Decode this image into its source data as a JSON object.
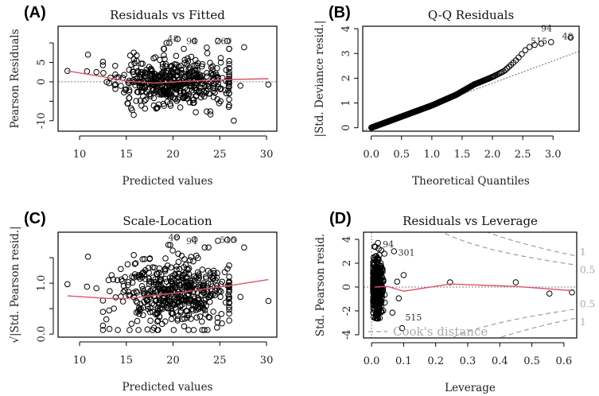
{
  "colors": {
    "points": "#000000",
    "smooth": "#DF536B",
    "reference": "#808080",
    "cook": "#9E9E9E"
  },
  "chart_data": [
    {
      "panel_label": "(A)",
      "type": "scatter",
      "title": "Residuals vs Fitted",
      "xlabel": "Predicted values",
      "ylabel": "Pearson Residuals",
      "xlim": [
        7.7,
        31.1
      ],
      "ylim": [
        -12.7,
        14.3
      ],
      "xticks": [
        10,
        15,
        20,
        25,
        30
      ],
      "xtick_labels": [
        "10",
        "15",
        "20",
        "25",
        "30"
      ],
      "yticks": [
        -10,
        -5,
        0,
        5,
        10
      ],
      "ytick_labels": [
        "-10",
        "",
        "0",
        "5",
        ""
      ],
      "hline": 0,
      "cloud": {
        "n": 480,
        "x_mean": 20,
        "x_sd": 3.0,
        "x_range": [
          12.5,
          26
        ],
        "y_mean": 0,
        "y_sd": 3.0,
        "y_range": [
          -8.5,
          8.5
        ],
        "seed": 11
      },
      "points": [
        [
          8.7,
          2.8
        ],
        [
          10.8,
          2.7
        ],
        [
          10.9,
          7.0
        ],
        [
          11.8,
          2.5
        ],
        [
          15.8,
          7.5
        ],
        [
          19.0,
          8.5
        ],
        [
          19.3,
          10.0
        ],
        [
          19.6,
          10.0
        ],
        [
          20.5,
          11.0
        ],
        [
          22.3,
          10.5
        ],
        [
          23.6,
          8.8
        ],
        [
          24.8,
          10.5
        ],
        [
          25.8,
          10.5
        ],
        [
          27.6,
          8.9
        ],
        [
          26.5,
          -10.0
        ],
        [
          27.2,
          -1.0
        ],
        [
          30.2,
          -0.7
        ],
        [
          17.0,
          -6.9
        ],
        [
          18.2,
          -6.9
        ],
        [
          24.0,
          -8.4
        ],
        [
          25.9,
          -2.2
        ]
      ],
      "labels": [
        {
          "text": "48",
          "x": 19.4,
          "y": 11.1
        },
        {
          "text": "94",
          "x": 21.4,
          "y": 10.5
        },
        {
          "text": "260",
          "x": 24.5,
          "y": 10.5
        }
      ],
      "smooth": [
        [
          8.7,
          2.8
        ],
        [
          12,
          1.5
        ],
        [
          15,
          0.2
        ],
        [
          18,
          -0.3
        ],
        [
          21,
          0.1
        ],
        [
          24,
          0.4
        ],
        [
          26,
          0.6
        ],
        [
          30.2,
          0.8
        ]
      ]
    },
    {
      "panel_label": "(B)",
      "type": "scatter",
      "title": "Q-Q Residuals",
      "xlabel": "Theoretical Quantiles",
      "ylabel": "|Std. Deviance resid.|",
      "xlim": [
        -0.14,
        3.43
      ],
      "ylim": [
        -0.14,
        4.1
      ],
      "xticks": [
        0,
        0.5,
        1,
        1.5,
        2,
        2.5,
        3
      ],
      "xtick_labels": [
        "0.0",
        "0.5",
        "1.0",
        "1.5",
        "2.0",
        "2.5",
        "3.0"
      ],
      "yticks": [
        0,
        1,
        2,
        3,
        4
      ],
      "ytick_labels": [
        "0",
        "1",
        "2",
        "3",
        "4"
      ],
      "n": 500,
      "qq_curve": [
        [
          0,
          0
        ],
        [
          0.5,
          0.45
        ],
        [
          1.0,
          0.9
        ],
        [
          1.4,
          1.33
        ],
        [
          1.7,
          1.75
        ],
        [
          2.0,
          2.05
        ],
        [
          2.2,
          2.3
        ],
        [
          2.4,
          2.75
        ],
        [
          2.55,
          3.15
        ],
        [
          2.65,
          3.33
        ],
        [
          2.75,
          3.37
        ],
        [
          2.85,
          3.42
        ],
        [
          3.0,
          3.47
        ],
        [
          3.3,
          3.65
        ]
      ],
      "reference_line": {
        "slope": 0.9,
        "intercept": 0
      },
      "labels": [
        {
          "text": "515",
          "x": 2.63,
          "y": 3.5
        },
        {
          "text": "94",
          "x": 2.8,
          "y": 3.5
        },
        {
          "text": "48",
          "x": 3.15,
          "y": 3.7
        }
      ]
    },
    {
      "panel_label": "(C)",
      "type": "scatter",
      "title": "Scale-Location",
      "xlabel": "Predicted values",
      "ylabel": "√|Std. Pearson resid.|",
      "xlim": [
        7.7,
        31.1
      ],
      "ylim": [
        -0.06,
        2.0
      ],
      "xticks": [
        10,
        15,
        20,
        25,
        30
      ],
      "xtick_labels": [
        "10",
        "15",
        "20",
        "25",
        "30"
      ],
      "yticks": [
        0,
        0.5,
        1.0,
        1.5
      ],
      "ytick_labels": [
        "0.0",
        "",
        "1.0",
        ""
      ],
      "cloud": {
        "n": 480,
        "x_mean": 20,
        "x_sd": 3.0,
        "x_range": [
          12.5,
          26
        ],
        "y_mean": 0.8,
        "y_sd": 0.33,
        "y_range": [
          0.08,
          1.7
        ],
        "seed": 23
      },
      "points": [
        [
          8.7,
          0.98
        ],
        [
          10.8,
          0.93
        ],
        [
          10.9,
          1.52
        ],
        [
          11.8,
          0.9
        ],
        [
          15.8,
          1.55
        ],
        [
          19.5,
          1.75
        ],
        [
          19.7,
          1.75
        ],
        [
          20.4,
          1.9
        ],
        [
          22.3,
          1.86
        ],
        [
          24.8,
          1.83
        ],
        [
          25.8,
          1.85
        ],
        [
          26.5,
          1.85
        ],
        [
          27.6,
          1.7
        ],
        [
          27.2,
          0.73
        ],
        [
          30.2,
          0.65
        ],
        [
          13.2,
          0.1
        ],
        [
          16.3,
          0.08
        ],
        [
          17.8,
          0.08
        ]
      ],
      "labels": [
        {
          "text": "48",
          "x": 19.5,
          "y": 1.9
        },
        {
          "text": "94",
          "x": 21.4,
          "y": 1.83
        },
        {
          "text": "515",
          "x": 25.0,
          "y": 1.85
        }
      ],
      "smooth": [
        [
          8.7,
          0.75
        ],
        [
          13,
          0.7
        ],
        [
          15,
          0.7
        ],
        [
          18,
          0.76
        ],
        [
          21,
          0.82
        ],
        [
          24,
          0.9
        ],
        [
          27,
          0.98
        ],
        [
          30.2,
          1.07
        ]
      ]
    },
    {
      "panel_label": "(D)",
      "type": "scatter",
      "title": "Residuals vs Leverage",
      "xlabel": "Leverage",
      "ylabel": "Std. Pearson resid.",
      "xlim": [
        -0.025,
        0.64
      ],
      "ylim": [
        -4.27,
        4.6
      ],
      "xticks": [
        0,
        0.1,
        0.2,
        0.3,
        0.4,
        0.5,
        0.6
      ],
      "xtick_labels": [
        "0.0",
        "0.1",
        "0.2",
        "0.3",
        "0.4",
        "0.5",
        "0.6"
      ],
      "yticks": [
        -4,
        -2,
        0,
        2,
        4
      ],
      "ytick_labels": [
        "-4",
        "-2",
        "0",
        "2",
        "4"
      ],
      "hline": 0,
      "vline": 0,
      "cloud": {
        "n": 480,
        "x_mean": 0.018,
        "x_sd": 0.008,
        "x_range": [
          0.005,
          0.05
        ],
        "y_mean": 0,
        "y_sd": 1.1,
        "y_range": [
          -2.6,
          3.4
        ],
        "seed": 37
      },
      "points": [
        [
          0.02,
          3.7
        ],
        [
          0.07,
          3.0
        ],
        [
          0.04,
          2.8
        ],
        [
          0.1,
          1.0
        ],
        [
          0.08,
          0.45
        ],
        [
          0.245,
          0.4
        ],
        [
          0.45,
          0.4
        ],
        [
          0.555,
          -0.55
        ],
        [
          0.625,
          -0.45
        ],
        [
          0.085,
          -0.95
        ],
        [
          0.065,
          -2.15
        ],
        [
          0.095,
          -3.45
        ],
        [
          0.02,
          -2.65
        ]
      ],
      "labels": [
        {
          "text": "94",
          "x": 0.035,
          "y": 3.6
        },
        {
          "text": "301",
          "x": 0.083,
          "y": 2.9
        },
        {
          "text": "515",
          "x": 0.105,
          "y": -3.6
        }
      ],
      "smooth": [
        [
          0.01,
          0
        ],
        [
          0.05,
          0.05
        ],
        [
          0.1,
          -0.35
        ],
        [
          0.245,
          0.25
        ],
        [
          0.45,
          0.05
        ],
        [
          0.625,
          -0.3
        ]
      ],
      "cooks": {
        "levels": [
          0.5,
          1
        ],
        "level_labels": [
          "0.5",
          "1"
        ],
        "n_params": 12,
        "legend": "Cook's distance"
      }
    }
  ]
}
